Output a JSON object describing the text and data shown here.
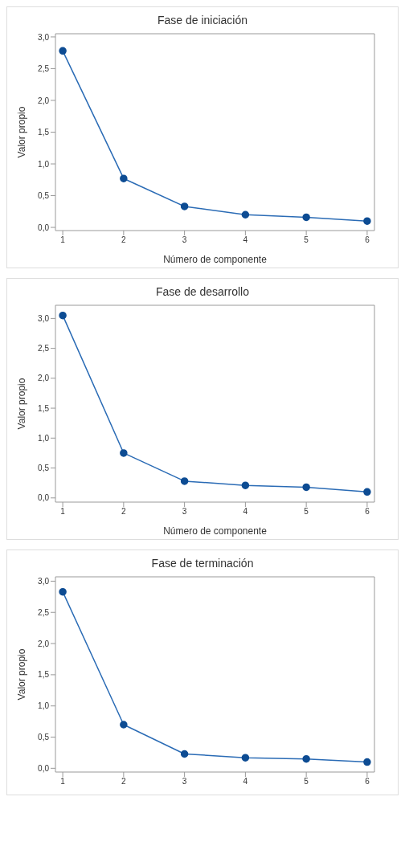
{
  "chart_data": [
    {
      "type": "line",
      "title": "Fase de iniciación",
      "xlabel": "Número de componente",
      "ylabel": "Valor propio",
      "x": [
        1,
        2,
        3,
        4,
        5,
        6
      ],
      "values": [
        2.78,
        0.77,
        0.33,
        0.2,
        0.16,
        0.1
      ],
      "color": "#2a6bb5",
      "marker": "circle",
      "xlim": [
        0.88,
        6.12
      ],
      "xticks": [
        1,
        2,
        3,
        4,
        5,
        6
      ],
      "ylim": [
        -0.05,
        3.05
      ],
      "yticks": [
        {
          "value": 0,
          "label": "0,0"
        },
        {
          "value": 0.5,
          "label": "0,5"
        },
        {
          "value": 1,
          "label": "1,0"
        },
        {
          "value": 1.5,
          "label": "1,5"
        },
        {
          "value": 2,
          "label": "2,0"
        },
        {
          "value": 2.5,
          "label": "2,5"
        },
        {
          "value": 3,
          "label": "3,0"
        }
      ]
    },
    {
      "type": "line",
      "title": "Fase de desarrollo",
      "xlabel": "Número de componente",
      "ylabel": "Valor propio",
      "x": [
        1,
        2,
        3,
        4,
        5,
        6
      ],
      "values": [
        3.05,
        0.75,
        0.28,
        0.21,
        0.18,
        0.1
      ],
      "color": "#2a6bb5",
      "marker": "circle",
      "xlim": [
        0.88,
        6.12
      ],
      "xticks": [
        1,
        2,
        3,
        4,
        5,
        6
      ],
      "ylim": [
        -0.07,
        3.22
      ],
      "yticks": [
        {
          "value": 0,
          "label": "0,0"
        },
        {
          "value": 0.5,
          "label": "0,5"
        },
        {
          "value": 1,
          "label": "1,0"
        },
        {
          "value": 1.5,
          "label": "1,5"
        },
        {
          "value": 2,
          "label": "2,0"
        },
        {
          "value": 2.5,
          "label": "2,5"
        },
        {
          "value": 3,
          "label": "3,0"
        }
      ]
    },
    {
      "type": "line",
      "title": "Fase de terminación",
      "ylabel": "Valor propio",
      "x": [
        1,
        2,
        3,
        4,
        5,
        6
      ],
      "values": [
        2.83,
        0.7,
        0.23,
        0.17,
        0.15,
        0.1
      ],
      "color": "#2a6bb5",
      "marker": "circle",
      "xlim": [
        0.88,
        6.12
      ],
      "xticks": [
        1,
        2,
        3,
        4,
        5,
        6
      ],
      "ylim": [
        -0.06,
        3.07
      ],
      "yticks": [
        {
          "value": 0,
          "label": "0,0"
        },
        {
          "value": 0.5,
          "label": "0,5"
        },
        {
          "value": 1,
          "label": "1,0"
        },
        {
          "value": 1.5,
          "label": "1,5"
        },
        {
          "value": 2,
          "label": "2,0"
        },
        {
          "value": 2.5,
          "label": "2,5"
        },
        {
          "value": 3,
          "label": "3,0"
        }
      ]
    }
  ]
}
